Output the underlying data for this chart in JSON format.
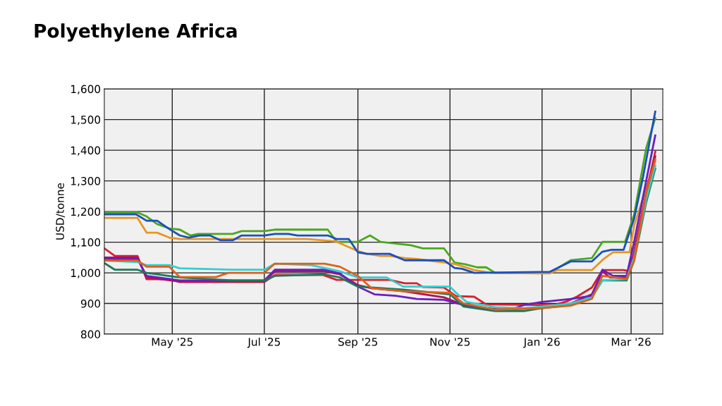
{
  "chart_data": {
    "type": "line",
    "title": "Polyethylene Africa",
    "ylabel": "USD/tonne",
    "xlim": [
      "2025-03-17",
      "2026-03-22"
    ],
    "xticks": [
      {
        "value": "2025-05-01",
        "label": "May '25"
      },
      {
        "value": "2025-07-01",
        "label": "Jul '25"
      },
      {
        "value": "2025-09-01",
        "label": "Sep '25"
      },
      {
        "value": "2025-11-01",
        "label": "Nov '25"
      },
      {
        "value": "2026-01-01",
        "label": "Jan '26"
      },
      {
        "value": "2026-03-01",
        "label": "Mar '26"
      }
    ],
    "ylim": [
      800,
      1600
    ],
    "yticks": [
      {
        "value": 800,
        "label": "800"
      },
      {
        "value": 900,
        "label": "900"
      },
      {
        "value": 1000,
        "label": "1,000"
      },
      {
        "value": 1100,
        "label": "1,100"
      },
      {
        "value": 1200,
        "label": "1,200"
      },
      {
        "value": 1300,
        "label": "1,300"
      },
      {
        "value": 1400,
        "label": "1,400"
      },
      {
        "value": 1500,
        "label": "1,500"
      },
      {
        "value": 1600,
        "label": "1,600"
      }
    ],
    "grid": true,
    "marker": "none",
    "line_style": "solid",
    "series": [
      {
        "color": "#4aa81c",
        "x": [
          "2025-03-17",
          "2025-04-08",
          "2025-04-14",
          "2025-04-21",
          "2025-04-29",
          "2025-05-06",
          "2025-05-13",
          "2025-05-18",
          "2025-06-10",
          "2025-06-16",
          "2025-07-01",
          "2025-07-08",
          "2025-08-12",
          "2025-08-18",
          "2025-09-01",
          "2025-09-09",
          "2025-09-16",
          "2025-10-06",
          "2025-10-14",
          "2025-10-28",
          "2025-11-04",
          "2025-11-11",
          "2025-11-19",
          "2025-11-25",
          "2025-12-01",
          "2026-01-06",
          "2026-01-20",
          "2026-02-03",
          "2026-02-10",
          "2026-02-25",
          "2026-03-03",
          "2026-03-11",
          "2026-03-17"
        ],
        "values": [
          1197,
          1197,
          1184,
          1159,
          1145,
          1141,
          1122,
          1127,
          1127,
          1136,
          1136,
          1141,
          1141,
          1101,
          1101,
          1122,
          1101,
          1090,
          1080,
          1080,
          1034,
          1028,
          1018,
          1018,
          1000,
          1000,
          1041,
          1048,
          1101,
          1101,
          1190,
          1407,
          1505
        ]
      },
      {
        "color": "#e8961e",
        "x": [
          "2025-03-17",
          "2025-04-08",
          "2025-04-14",
          "2025-04-21",
          "2025-04-29",
          "2025-05-06",
          "2025-07-29",
          "2025-08-17",
          "2025-08-31",
          "2025-09-07",
          "2025-09-16",
          "2025-09-22",
          "2025-10-02",
          "2025-10-10",
          "2025-10-31",
          "2025-11-05",
          "2025-11-17",
          "2025-11-28",
          "2026-01-06",
          "2026-01-11",
          "2026-02-03",
          "2026-02-11",
          "2026-02-17",
          "2026-02-28",
          "2026-03-03",
          "2026-03-11",
          "2026-03-17"
        ],
        "values": [
          1179,
          1179,
          1131,
          1131,
          1115,
          1110,
          1110,
          1103,
          1073,
          1062,
          1055,
          1055,
          1048,
          1045,
          1032,
          1028,
          1009,
          1000,
          998,
          1009,
          1009,
          1046,
          1067,
          1067,
          1154,
          1276,
          1363
        ]
      },
      {
        "color": "#1a4fc0",
        "x": [
          "2025-03-17",
          "2025-04-07",
          "2025-04-14",
          "2025-04-21",
          "2025-04-29",
          "2025-05-06",
          "2025-05-12",
          "2025-05-19",
          "2025-05-26",
          "2025-06-02",
          "2025-06-10",
          "2025-06-16",
          "2025-07-01",
          "2025-07-08",
          "2025-07-17",
          "2025-07-23",
          "2025-08-12",
          "2025-08-18",
          "2025-08-26",
          "2025-09-01",
          "2025-09-07",
          "2025-09-22",
          "2025-10-02",
          "2025-10-28",
          "2025-11-04",
          "2025-11-09",
          "2025-11-17",
          "2026-01-06",
          "2026-01-20",
          "2026-02-03",
          "2026-02-10",
          "2026-02-16",
          "2026-02-24",
          "2026-03-03",
          "2026-03-09",
          "2026-03-17"
        ],
        "values": [
          1191,
          1191,
          1170,
          1170,
          1143,
          1122,
          1115,
          1122,
          1122,
          1106,
          1106,
          1122,
          1122,
          1127,
          1127,
          1122,
          1122,
          1110,
          1110,
          1067,
          1062,
          1062,
          1041,
          1041,
          1016,
          1013,
          1000,
          1003,
          1037,
          1037,
          1069,
          1075,
          1075,
          1177,
          1315,
          1526
        ]
      },
      {
        "color": "#d8202c",
        "x": [
          "2025-03-17",
          "2025-03-24",
          "2025-04-08",
          "2025-04-14",
          "2025-04-29",
          "2025-05-06",
          "2025-07-01",
          "2025-07-08",
          "2025-08-09",
          "2025-08-18",
          "2025-08-28",
          "2025-09-22",
          "2025-10-02",
          "2025-10-10",
          "2025-10-14",
          "2025-10-28",
          "2025-11-05",
          "2025-11-17",
          "2025-11-25",
          "2026-01-09",
          "2026-01-18",
          "2026-01-24",
          "2026-02-03",
          "2026-02-10",
          "2026-02-24",
          "2026-02-28",
          "2026-03-03",
          "2026-03-11",
          "2026-03-17"
        ],
        "values": [
          1080,
          1055,
          1055,
          979,
          979,
          970,
          970,
          993,
          993,
          977,
          977,
          977,
          966,
          966,
          954,
          952,
          924,
          922,
          897,
          895,
          908,
          922,
          952,
          1009,
          1009,
          1005,
          1069,
          1262,
          1395
        ]
      },
      {
        "color": "#b0105a",
        "x": [
          "2025-03-17",
          "2025-04-08",
          "2025-04-14",
          "2025-05-06",
          "2025-07-01",
          "2025-07-08",
          "2025-08-10",
          "2025-08-20",
          "2025-09-01",
          "2025-09-10",
          "2025-10-01",
          "2025-10-28",
          "2025-11-10",
          "2025-12-01",
          "2026-01-01",
          "2026-01-20",
          "2026-02-03",
          "2026-02-10",
          "2026-02-15",
          "2026-02-26",
          "2026-03-03",
          "2026-03-11",
          "2026-03-17"
        ],
        "values": [
          1050,
          1050,
          985,
          972,
          972,
          1005,
          1005,
          995,
          960,
          950,
          940,
          920,
          895,
          880,
          885,
          900,
          930,
          1005,
          985,
          985,
          1060,
          1250,
          1380
        ]
      },
      {
        "color": "#6a1fc0",
        "x": [
          "2025-03-17",
          "2025-04-08",
          "2025-04-14",
          "2025-05-06",
          "2025-07-01",
          "2025-07-08",
          "2025-08-10",
          "2025-08-20",
          "2025-09-01",
          "2025-09-12",
          "2025-09-26",
          "2025-10-10",
          "2025-10-28",
          "2025-11-10",
          "2025-11-25",
          "2025-12-10",
          "2025-12-20",
          "2026-01-01",
          "2026-01-20",
          "2026-02-03",
          "2026-02-10",
          "2026-02-17",
          "2026-02-26",
          "2026-03-03",
          "2026-03-11",
          "2026-03-17"
        ],
        "values": [
          1045,
          1045,
          990,
          975,
          975,
          1010,
          1010,
          998,
          955,
          930,
          925,
          915,
          912,
          895,
          885,
          878,
          895,
          905,
          915,
          925,
          1010,
          990,
          990,
          1100,
          1300,
          1448
        ]
      },
      {
        "color": "#1a7a5a",
        "x": [
          "2025-03-17",
          "2025-03-24",
          "2025-04-08",
          "2025-04-14",
          "2025-05-06",
          "2025-06-10",
          "2025-07-01",
          "2025-07-08",
          "2025-08-10",
          "2025-08-20",
          "2025-09-01",
          "2025-10-01",
          "2025-11-01",
          "2025-11-10",
          "2025-12-01",
          "2025-12-20",
          "2026-01-01",
          "2026-01-20",
          "2026-02-03",
          "2026-02-10",
          "2026-02-26",
          "2026-03-03",
          "2026-03-11",
          "2026-03-17"
        ],
        "values": [
          1032,
          1010,
          1010,
          1000,
          985,
          975,
          975,
          990,
          995,
          985,
          955,
          945,
          930,
          890,
          875,
          875,
          885,
          895,
          920,
          975,
          975,
          1040,
          1230,
          1340
        ]
      },
      {
        "color": "#30d0d0",
        "x": [
          "2025-03-17",
          "2025-04-08",
          "2025-04-14",
          "2025-04-29",
          "2025-05-06",
          "2025-06-10",
          "2025-07-01",
          "2025-07-08",
          "2025-08-01",
          "2025-08-20",
          "2025-09-01",
          "2025-09-20",
          "2025-10-01",
          "2025-11-01",
          "2025-11-05",
          "2025-11-12",
          "2025-12-01",
          "2025-12-20",
          "2026-01-01",
          "2026-01-20",
          "2026-02-03",
          "2026-02-10",
          "2026-02-26",
          "2026-03-03",
          "2026-03-11",
          "2026-03-17"
        ],
        "values": [
          1040,
          1035,
          1025,
          1025,
          1015,
          1010,
          1010,
          1030,
          1025,
          1005,
          985,
          985,
          955,
          955,
          935,
          905,
          888,
          885,
          890,
          900,
          920,
          975,
          980,
          1050,
          1240,
          1350
        ]
      },
      {
        "color": "#e0601a",
        "x": [
          "2025-03-17",
          "2025-04-08",
          "2025-04-14",
          "2025-04-29",
          "2025-05-06",
          "2025-05-30",
          "2025-06-07",
          "2025-07-01",
          "2025-07-08",
          "2025-08-10",
          "2025-08-20",
          "2025-09-01",
          "2025-09-10",
          "2025-10-01",
          "2025-11-01",
          "2025-11-10",
          "2025-12-01",
          "2026-01-01",
          "2026-01-20",
          "2026-02-03",
          "2026-02-10",
          "2026-02-26",
          "2026-03-03",
          "2026-03-11",
          "2026-03-17"
        ],
        "values": [
          1040,
          1040,
          1020,
          1020,
          986,
          986,
          1000,
          1000,
          1030,
          1030,
          1020,
          990,
          950,
          940,
          935,
          900,
          880,
          885,
          893,
          915,
          990,
          980,
          1040,
          1260,
          1370
        ]
      }
    ]
  }
}
